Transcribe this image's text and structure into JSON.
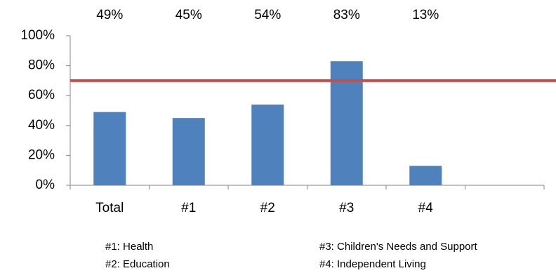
{
  "chart_data": {
    "type": "bar",
    "categories": [
      "Total",
      "#1",
      "#2",
      "#3",
      "#4",
      null
    ],
    "values": [
      49,
      45,
      54,
      83,
      13,
      null
    ],
    "value_labels": [
      "49%",
      "45%",
      "54%",
      "83%",
      "13%",
      null
    ],
    "color": "#4f81bd",
    "ylim": [
      0,
      100
    ],
    "yticks": [
      {
        "value": 0,
        "label": "0%"
      },
      {
        "value": 20,
        "label": "20%"
      },
      {
        "value": 40,
        "label": "40%"
      },
      {
        "value": 60,
        "label": "60%"
      },
      {
        "value": 80,
        "label": "80%"
      },
      {
        "value": 100,
        "label": "100%"
      }
    ],
    "grid": false,
    "reference_line": {
      "value": 70,
      "color": "#c0504d"
    },
    "notes": [
      [
        "#1: Health",
        "#2: Education"
      ],
      [
        "#3: Children's Needs and Support",
        "#4: Independent Living"
      ]
    ]
  }
}
